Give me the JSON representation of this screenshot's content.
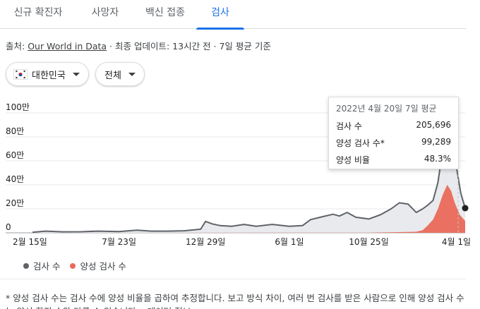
{
  "tabs": [
    {
      "label": "신규 확진자",
      "active": false
    },
    {
      "label": "사망자",
      "active": false
    },
    {
      "label": "백신 접종",
      "active": false
    },
    {
      "label": "검사",
      "active": true
    }
  ],
  "source": {
    "prefix": "출처: ",
    "link_text": "Our World in Data",
    "suffix": " · 최종 업데이트: 13시간 전 · 7일 평균 기준"
  },
  "filters": {
    "country": "대한민국",
    "range": "전체"
  },
  "tooltip": {
    "title": "2022년 4월 20일 7일 평균",
    "rows": [
      {
        "label": "검사 수",
        "value": "205,696"
      },
      {
        "label": "양성 검사 수*",
        "value": "99,289"
      },
      {
        "label": "양성 비율",
        "value": "48.3%"
      }
    ]
  },
  "legend": [
    {
      "label": "검사 수",
      "color": "#5f6368"
    },
    {
      "label": "양성 검사 수",
      "color": "#ea6a5a"
    }
  ],
  "footnote": "* 양성 검사 수는 검사 수에 양성 비율을 곱하여 추정합니다. 보고 방식 차이, 여러 번 검사를 받은 사람으로 인해 양성 검사 수는 양성 확진 수와 다를 수 있습니다. · 데이터 정보",
  "chart_data": {
    "type": "area",
    "ylim": [
      0,
      1000000
    ],
    "yticks": [
      {
        "value": 0,
        "label": "0"
      },
      {
        "value": 200000,
        "label": "20만"
      },
      {
        "value": 400000,
        "label": "40만"
      },
      {
        "value": 600000,
        "label": "60만"
      },
      {
        "value": 800000,
        "label": "80만"
      },
      {
        "value": 1000000,
        "label": "100만"
      }
    ],
    "xlim": [
      "2020-02-15",
      "2022-04-20"
    ],
    "xticks": [
      {
        "date": "2020-02-15",
        "label": "2월 15일"
      },
      {
        "date": "2020-07-23",
        "label": "7월 23일"
      },
      {
        "date": "2020-12-29",
        "label": "12월 29일"
      },
      {
        "date": "2021-06-01",
        "label": "6월 1일"
      },
      {
        "date": "2021-10-25",
        "label": "10월 25일"
      },
      {
        "date": "2022-04-01",
        "label": "4월 1일"
      }
    ],
    "series": [
      {
        "name": "검사 수",
        "color": "#5f6368",
        "points": [
          [
            "2020-02-15",
            5000
          ],
          [
            "2020-03-10",
            14000
          ],
          [
            "2020-04-10",
            8000
          ],
          [
            "2020-05-15",
            9000
          ],
          [
            "2020-06-15",
            14000
          ],
          [
            "2020-07-23",
            10000
          ],
          [
            "2020-08-25",
            22000
          ],
          [
            "2020-09-20",
            14000
          ],
          [
            "2020-10-20",
            14000
          ],
          [
            "2020-11-20",
            17000
          ],
          [
            "2020-12-20",
            30000
          ],
          [
            "2020-12-29",
            95000
          ],
          [
            "2021-01-10",
            75000
          ],
          [
            "2021-01-25",
            60000
          ],
          [
            "2021-02-15",
            55000
          ],
          [
            "2021-03-10",
            70000
          ],
          [
            "2021-04-01",
            55000
          ],
          [
            "2021-05-01",
            70000
          ],
          [
            "2021-06-01",
            55000
          ],
          [
            "2021-06-25",
            60000
          ],
          [
            "2021-07-10",
            110000
          ],
          [
            "2021-08-01",
            135000
          ],
          [
            "2021-08-20",
            155000
          ],
          [
            "2021-09-01",
            140000
          ],
          [
            "2021-09-15",
            170000
          ],
          [
            "2021-10-01",
            130000
          ],
          [
            "2021-10-25",
            115000
          ],
          [
            "2021-11-15",
            150000
          ],
          [
            "2021-12-05",
            200000
          ],
          [
            "2021-12-20",
            250000
          ],
          [
            "2022-01-05",
            240000
          ],
          [
            "2022-01-20",
            170000
          ],
          [
            "2022-02-01",
            200000
          ],
          [
            "2022-02-10",
            230000
          ],
          [
            "2022-02-20",
            270000
          ],
          [
            "2022-03-01",
            420000
          ],
          [
            "2022-03-10",
            700000
          ],
          [
            "2022-03-20",
            950000
          ],
          [
            "2022-03-28",
            720000
          ],
          [
            "2022-04-05",
            520000
          ],
          [
            "2022-04-12",
            330000
          ],
          [
            "2022-04-20",
            205696
          ]
        ]
      },
      {
        "name": "양성 검사 수",
        "color": "#ea6a5a",
        "points": [
          [
            "2020-02-15",
            0
          ],
          [
            "2021-10-25",
            2000
          ],
          [
            "2021-12-20",
            6000
          ],
          [
            "2022-01-20",
            9000
          ],
          [
            "2022-02-01",
            22000
          ],
          [
            "2022-02-10",
            60000
          ],
          [
            "2022-02-20",
            110000
          ],
          [
            "2022-03-01",
            200000
          ],
          [
            "2022-03-10",
            320000
          ],
          [
            "2022-03-18",
            400000
          ],
          [
            "2022-03-25",
            350000
          ],
          [
            "2022-04-01",
            250000
          ],
          [
            "2022-04-10",
            150000
          ],
          [
            "2022-04-20",
            99289
          ]
        ]
      }
    ]
  }
}
